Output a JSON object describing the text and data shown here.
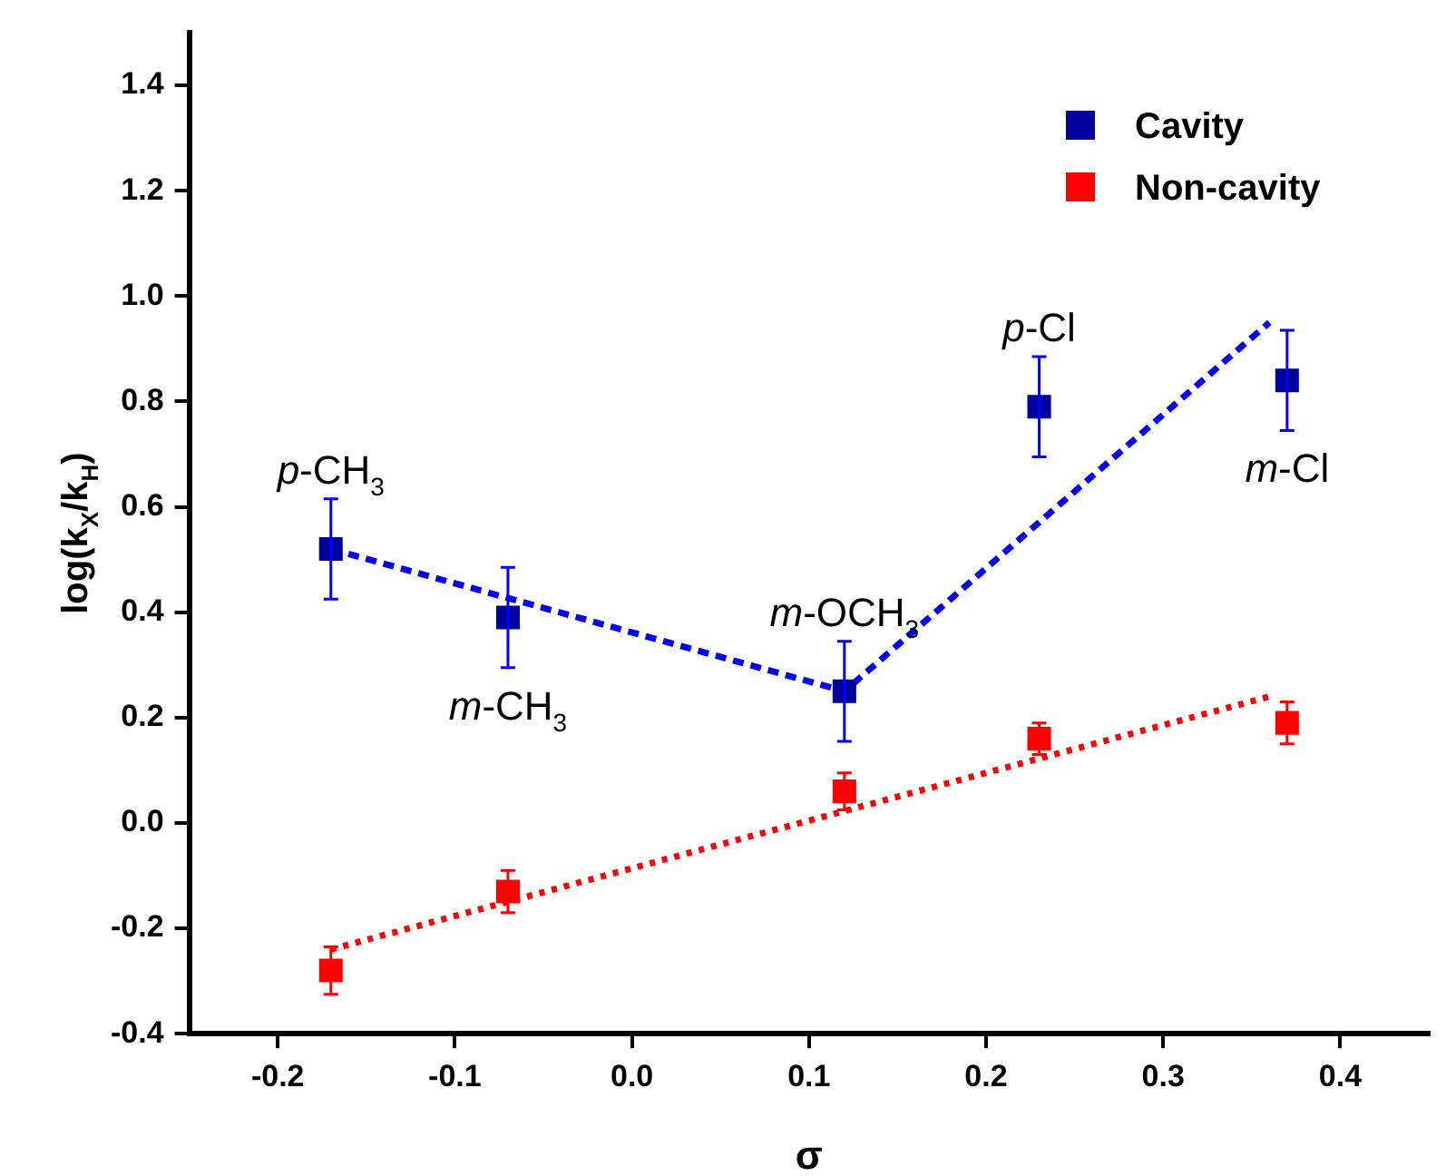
{
  "chart_data": {
    "type": "scatter",
    "xlabel": "σ",
    "ylabel": "log(k$_{X}$/k$_{H}$)",
    "xlim": [
      -0.25,
      0.45
    ],
    "xticks": [
      {
        "value": -0.2,
        "label": "-0.2"
      },
      {
        "value": -0.1,
        "label": "-0.1"
      },
      {
        "value": 0,
        "label": "0.0"
      },
      {
        "value": 0.1,
        "label": "0.1"
      },
      {
        "value": 0.2,
        "label": "0.2"
      },
      {
        "value": 0.3,
        "label": "0.3"
      },
      {
        "value": 0.4,
        "label": "0.4"
      }
    ],
    "ylim": [
      -0.4,
      1.5
    ],
    "yticks": [
      {
        "value": -0.4,
        "label": "-0.4"
      },
      {
        "value": -0.2,
        "label": "-0.2"
      },
      {
        "value": 0,
        "label": "0.0"
      },
      {
        "value": 0.2,
        "label": "0.2"
      },
      {
        "value": 0.4,
        "label": "0.4"
      },
      {
        "value": 0.6,
        "label": "0.6"
      },
      {
        "value": 0.8,
        "label": "0.8"
      },
      {
        "value": 1,
        "label": "1.0"
      },
      {
        "value": 1.2,
        "label": "1.2"
      },
      {
        "value": 1.4,
        "label": "1.4"
      }
    ],
    "grid": false,
    "legend": "top right",
    "marker": "square",
    "series": [
      {
        "name": "Cavity",
        "color": "#00009c",
        "x": [
          -0.17,
          -0.07,
          0.12,
          0.23,
          0.37
        ],
        "values": [
          0.52,
          0.39,
          0.25,
          0.79,
          0.84
        ],
        "errors": [
          0.095,
          0.095,
          0.095,
          0.095,
          0.095
        ]
      },
      {
        "name": "Non-cavity",
        "color": "#ff0000",
        "x": [
          -0.17,
          -0.07,
          0.12,
          0.23,
          0.37
        ],
        "values": [
          -0.28,
          -0.13,
          0.06,
          0.16,
          0.19
        ],
        "errors": [
          0.045,
          0.04,
          0.035,
          0.03,
          0.04
        ]
      },
      {
        "type": "line",
        "color": "#0000ff",
        "line_style": "dashed",
        "marker": "none",
        "x": [
          -0.17,
          0.12,
          0.36
        ],
        "values": [
          0.52,
          0.25,
          0.95
        ]
      },
      {
        "type": "line",
        "color": "#ff0000",
        "line_style": "dotted",
        "marker": "none",
        "x": [
          -0.17,
          0.36
        ],
        "values": [
          -0.24,
          0.24
        ]
      }
    ],
    "annotations": [
      {
        "text": "p-CH$_{3}$",
        "x": -0.17,
        "y": 0.52
      },
      {
        "text": "m-CH$_{3}$",
        "x": -0.07,
        "y": 0.39
      },
      {
        "text": "m-OCH$_{3}$",
        "x": 0.12,
        "y": 0.25
      },
      {
        "text": "p-Cl",
        "x": 0.23,
        "y": 0.79
      },
      {
        "text": "m-Cl",
        "x": 0.37,
        "y": 0.84
      }
    ]
  }
}
